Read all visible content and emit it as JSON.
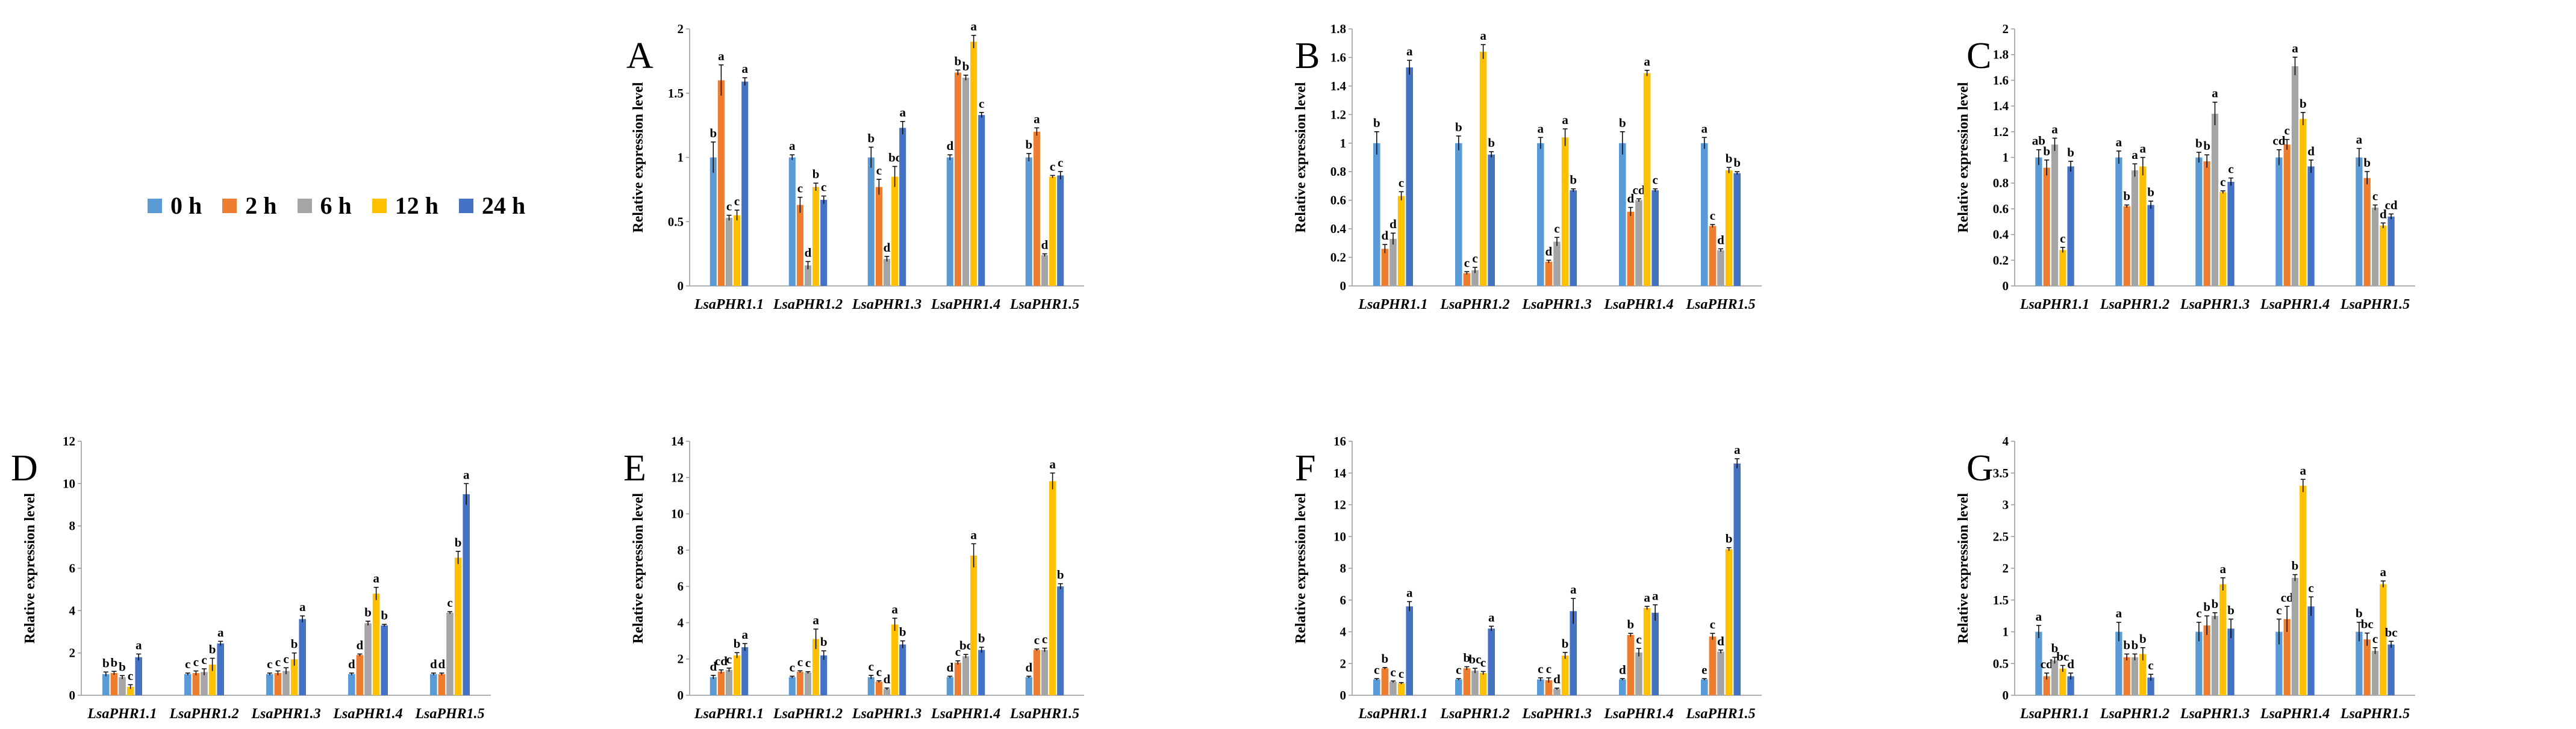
{
  "figure": {
    "legend": [
      {
        "label": "0 h",
        "color": "#5b9bd5"
      },
      {
        "label": "2 h",
        "color": "#ed7d31"
      },
      {
        "label": "6 h",
        "color": "#a5a5a5"
      },
      {
        "label": "12 h",
        "color": "#ffc000"
      },
      {
        "label": "24 h",
        "color": "#4472c4"
      }
    ]
  },
  "chart_data": [
    {
      "panel": "A",
      "type": "bar",
      "ylabel": "Relative expression level",
      "categories": [
        "LsaPHR1.1",
        "LsaPHR1.2",
        "LsaPHR1.3",
        "LsaPHR1.4",
        "LsaPHR1.5"
      ],
      "ylim": [
        0,
        2
      ],
      "ticks": [
        "0",
        "0.5",
        "1",
        "1.5",
        "2"
      ],
      "series": [
        {
          "name": "0 h",
          "values": [
            1.0,
            1.0,
            1.0,
            1.0,
            1.0
          ],
          "errors": [
            0.12,
            0.02,
            0.08,
            0.02,
            0.03
          ],
          "letters": [
            "b",
            "a",
            "b",
            "d",
            "b"
          ]
        },
        {
          "name": "2 h",
          "values": [
            1.6,
            0.63,
            0.77,
            1.66,
            1.2
          ],
          "errors": [
            0.12,
            0.06,
            0.06,
            0.02,
            0.03
          ],
          "letters": [
            "a",
            "c",
            "c",
            "b",
            "a"
          ]
        },
        {
          "name": "6 h",
          "values": [
            0.53,
            0.16,
            0.21,
            1.62,
            0.24
          ],
          "errors": [
            0.02,
            0.03,
            0.02,
            0.02,
            0.01
          ],
          "letters": [
            "c",
            "d",
            "d",
            "b",
            "d"
          ]
        },
        {
          "name": "12 h",
          "values": [
            0.55,
            0.77,
            0.85,
            1.9,
            0.85
          ],
          "errors": [
            0.04,
            0.03,
            0.08,
            0.05,
            0.01
          ],
          "letters": [
            "c",
            "b",
            "bc",
            "a",
            "c"
          ]
        },
        {
          "name": "24 h",
          "values": [
            1.59,
            0.67,
            1.23,
            1.33,
            0.86
          ],
          "errors": [
            0.03,
            0.03,
            0.05,
            0.02,
            0.03
          ],
          "letters": [
            "a",
            "c",
            "a",
            "c",
            "c"
          ]
        }
      ]
    },
    {
      "panel": "B",
      "type": "bar",
      "ylabel": "Relative expression level",
      "categories": [
        "LsaPHR1.1",
        "LsaPHR1.2",
        "LsaPHR1.3",
        "LsaPHR1.4",
        "LsaPHR1.5"
      ],
      "ylim": [
        0,
        1.8
      ],
      "ticks": [
        "0",
        "0.2",
        "0.4",
        "0.6",
        "0.8",
        "1",
        "1.2",
        "1.4",
        "1.6",
        "1.8"
      ],
      "series": [
        {
          "name": "0 h",
          "values": [
            1.0,
            1.0,
            1.0,
            1.0,
            1.0
          ],
          "errors": [
            0.08,
            0.05,
            0.04,
            0.08,
            0.04
          ],
          "letters": [
            "b",
            "b",
            "a",
            "b",
            "a"
          ]
        },
        {
          "name": "2 h",
          "values": [
            0.26,
            0.09,
            0.17,
            0.52,
            0.42
          ],
          "errors": [
            0.03,
            0.01,
            0.01,
            0.03,
            0.01
          ],
          "letters": [
            "d",
            "c",
            "d",
            "d",
            "c"
          ]
        },
        {
          "name": "6 h",
          "values": [
            0.33,
            0.11,
            0.31,
            0.6,
            0.25
          ],
          "errors": [
            0.04,
            0.02,
            0.03,
            0.01,
            0.01
          ],
          "letters": [
            "d",
            "c",
            "c",
            "cd",
            "d"
          ]
        },
        {
          "name": "12 h",
          "values": [
            0.63,
            1.64,
            1.04,
            1.49,
            0.81
          ],
          "errors": [
            0.03,
            0.05,
            0.06,
            0.02,
            0.02
          ],
          "letters": [
            "c",
            "a",
            "a",
            "a",
            "b"
          ]
        },
        {
          "name": "24 h",
          "values": [
            1.53,
            0.92,
            0.67,
            0.67,
            0.79
          ],
          "errors": [
            0.05,
            0.02,
            0.01,
            0.01,
            0.01
          ],
          "letters": [
            "a",
            "b",
            "b",
            "c",
            "b"
          ]
        }
      ]
    },
    {
      "panel": "C",
      "type": "bar",
      "ylabel": "Relative expression level",
      "categories": [
        "LsaPHR1.1",
        "LsaPHR1.2",
        "LsaPHR1.3",
        "LsaPHR1.4",
        "LsaPHR1.5"
      ],
      "ylim": [
        0,
        2
      ],
      "ticks": [
        "0",
        "0.2",
        "0.4",
        "0.6",
        "0.8",
        "1",
        "1.2",
        "1.4",
        "1.6",
        "1.8",
        "2"
      ],
      "series": [
        {
          "name": "0 h",
          "values": [
            1.0,
            1.0,
            1.0,
            1.0,
            1.0
          ],
          "errors": [
            0.06,
            0.05,
            0.04,
            0.06,
            0.07
          ],
          "letters": [
            "ab",
            "a",
            "b",
            "cd",
            "a"
          ]
        },
        {
          "name": "2 h",
          "values": [
            0.92,
            0.62,
            0.97,
            1.1,
            0.84
          ],
          "errors": [
            0.06,
            0.01,
            0.05,
            0.04,
            0.05
          ],
          "letters": [
            "b",
            "b",
            "b",
            "c",
            "b"
          ]
        },
        {
          "name": "6 h",
          "values": [
            1.1,
            0.9,
            1.34,
            1.71,
            0.61
          ],
          "errors": [
            0.05,
            0.05,
            0.09,
            0.07,
            0.02
          ],
          "letters": [
            "a",
            "a",
            "a",
            "a",
            "c"
          ]
        },
        {
          "name": "12 h",
          "values": [
            0.28,
            0.93,
            0.73,
            1.3,
            0.47
          ],
          "errors": [
            0.02,
            0.07,
            0.01,
            0.05,
            0.02
          ],
          "letters": [
            "c",
            "a",
            "c",
            "b",
            "d"
          ]
        },
        {
          "name": "24 h",
          "values": [
            0.93,
            0.63,
            0.81,
            0.93,
            0.54
          ],
          "errors": [
            0.04,
            0.03,
            0.03,
            0.05,
            0.02
          ],
          "letters": [
            "b",
            "b",
            "c",
            "d",
            "cd"
          ]
        }
      ]
    },
    {
      "panel": "D",
      "type": "bar",
      "ylabel": "Relative expression level",
      "categories": [
        "LsaPHR1.1",
        "LsaPHR1.2",
        "LsaPHR1.3",
        "LsaPHR1.4",
        "LsaPHR1.5"
      ],
      "ylim": [
        0,
        12
      ],
      "ticks": [
        "0",
        "2",
        "4",
        "6",
        "8",
        "10",
        "12"
      ],
      "series": [
        {
          "name": "0 h",
          "values": [
            1.0,
            1.0,
            1.0,
            1.0,
            1.0
          ],
          "errors": [
            0.1,
            0.05,
            0.05,
            0.05,
            0.05
          ],
          "letters": [
            "b",
            "c",
            "c",
            "d",
            "d"
          ]
        },
        {
          "name": "2 h",
          "values": [
            1.05,
            1.05,
            1.05,
            1.9,
            1.0
          ],
          "errors": [
            0.08,
            0.1,
            0.1,
            0.05,
            0.05
          ],
          "letters": [
            "b",
            "c",
            "c",
            "d",
            "d"
          ]
        },
        {
          "name": "6 h",
          "values": [
            0.85,
            1.1,
            1.15,
            3.4,
            3.9
          ],
          "errors": [
            0.08,
            0.15,
            0.15,
            0.1,
            0.05
          ],
          "letters": [
            "b",
            "c",
            "c",
            "b",
            "c"
          ]
        },
        {
          "name": "12 h",
          "values": [
            0.4,
            1.45,
            1.7,
            4.8,
            6.5
          ],
          "errors": [
            0.1,
            0.3,
            0.3,
            0.3,
            0.3
          ],
          "letters": [
            "c",
            "b",
            "b",
            "a",
            "b"
          ]
        },
        {
          "name": "24 h",
          "values": [
            1.8,
            2.45,
            3.6,
            3.3,
            9.5
          ],
          "errors": [
            0.15,
            0.1,
            0.15,
            0.05,
            0.5
          ],
          "letters": [
            "a",
            "a",
            "a",
            "b",
            "a"
          ]
        }
      ]
    },
    {
      "panel": "E",
      "type": "bar",
      "ylabel": "Relative expression level",
      "categories": [
        "LsaPHR1.1",
        "LsaPHR1.2",
        "LsaPHR1.3",
        "LsaPHR1.4",
        "LsaPHR1.5"
      ],
      "ylim": [
        0,
        14
      ],
      "ticks": [
        "0",
        "2",
        "4",
        "6",
        "8",
        "10",
        "12",
        "14"
      ],
      "series": [
        {
          "name": "0 h",
          "values": [
            1.0,
            1.0,
            1.0,
            1.0,
            1.0
          ],
          "errors": [
            0.1,
            0.05,
            0.1,
            0.05,
            0.05
          ],
          "letters": [
            "d",
            "c",
            "c",
            "d",
            "d"
          ]
        },
        {
          "name": "2 h",
          "values": [
            1.3,
            1.3,
            0.75,
            1.8,
            2.5
          ],
          "errors": [
            0.1,
            0.05,
            0.05,
            0.1,
            0.05
          ],
          "letters": [
            "cd",
            "c",
            "c",
            "c",
            "c"
          ]
        },
        {
          "name": "6 h",
          "values": [
            1.4,
            1.25,
            0.35,
            2.15,
            2.5
          ],
          "errors": [
            0.1,
            0.05,
            0.05,
            0.1,
            0.1
          ],
          "letters": [
            "c",
            "c",
            "d",
            "bc",
            "c"
          ]
        },
        {
          "name": "12 h",
          "values": [
            2.2,
            3.1,
            3.9,
            7.7,
            11.8
          ],
          "errors": [
            0.15,
            0.55,
            0.35,
            0.65,
            0.45
          ],
          "letters": [
            "b",
            "a",
            "a",
            "a",
            "a"
          ]
        },
        {
          "name": "24 h",
          "values": [
            2.65,
            2.2,
            2.8,
            2.5,
            6.0
          ],
          "errors": [
            0.2,
            0.25,
            0.2,
            0.15,
            0.15
          ],
          "letters": [
            "a",
            "b",
            "b",
            "b",
            "b"
          ]
        }
      ]
    },
    {
      "panel": "F",
      "type": "bar",
      "ylabel": "Relative expression level",
      "categories": [
        "LsaPHR1.1",
        "LsaPHR1.2",
        "LsaPHR1.3",
        "LsaPHR1.4",
        "LsaPHR1.5"
      ],
      "ylim": [
        0,
        16
      ],
      "ticks": [
        "0",
        "2",
        "4",
        "6",
        "8",
        "10",
        "12",
        "14",
        "16"
      ],
      "series": [
        {
          "name": "0 h",
          "values": [
            1.0,
            1.0,
            1.0,
            1.0,
            1.0
          ],
          "errors": [
            0.05,
            0.05,
            0.1,
            0.05,
            0.05
          ],
          "letters": [
            "c",
            "c",
            "c",
            "d",
            "e"
          ]
        },
        {
          "name": "2 h",
          "values": [
            1.7,
            1.7,
            0.95,
            3.8,
            3.7
          ],
          "errors": [
            0.05,
            0.1,
            0.15,
            0.1,
            0.2
          ],
          "letters": [
            "b",
            "b",
            "c",
            "b",
            "c"
          ]
        },
        {
          "name": "6 h",
          "values": [
            0.85,
            1.55,
            0.4,
            2.7,
            2.75
          ],
          "errors": [
            0.05,
            0.15,
            0.05,
            0.25,
            0.1
          ],
          "letters": [
            "c",
            "bc",
            "d",
            "c",
            "d"
          ]
        },
        {
          "name": "12 h",
          "values": [
            0.75,
            1.4,
            2.5,
            5.5,
            9.2
          ],
          "errors": [
            0.05,
            0.1,
            0.2,
            0.1,
            0.1
          ],
          "letters": [
            "c",
            "c",
            "b",
            "a",
            "b"
          ]
        },
        {
          "name": "24 h",
          "values": [
            5.6,
            4.2,
            5.3,
            5.2,
            14.6
          ],
          "errors": [
            0.3,
            0.15,
            0.8,
            0.5,
            0.3
          ],
          "letters": [
            "a",
            "a",
            "a",
            "a",
            "a"
          ]
        }
      ]
    },
    {
      "panel": "G",
      "type": "bar",
      "ylabel": "Relative expression level",
      "categories": [
        "LsaPHR1.1",
        "LsaPHR1.2",
        "LsaPHR1.3",
        "LsaPHR1.4",
        "LsaPHR1.5"
      ],
      "ylim": [
        0,
        4
      ],
      "ticks": [
        "0",
        "0.5",
        "1",
        "1.5",
        "2",
        "2.5",
        "3",
        "3.5",
        "4"
      ],
      "series": [
        {
          "name": "0 h",
          "values": [
            1.0,
            1.0,
            1.0,
            1.0,
            1.0
          ],
          "errors": [
            0.1,
            0.15,
            0.15,
            0.2,
            0.15
          ],
          "letters": [
            "a",
            "a",
            "c",
            "c",
            "b"
          ]
        },
        {
          "name": "2 h",
          "values": [
            0.3,
            0.6,
            1.1,
            1.2,
            0.88
          ],
          "errors": [
            0.05,
            0.05,
            0.15,
            0.2,
            0.1
          ],
          "letters": [
            "cd",
            "b",
            "b",
            "cd",
            "bc"
          ]
        },
        {
          "name": "6 h",
          "values": [
            0.55,
            0.6,
            1.25,
            1.85,
            0.7
          ],
          "errors": [
            0.05,
            0.05,
            0.05,
            0.05,
            0.05
          ],
          "letters": [
            "b",
            "b",
            "b",
            "b",
            "c"
          ]
        },
        {
          "name": "12 h",
          "values": [
            0.42,
            0.65,
            1.75,
            3.3,
            1.75
          ],
          "errors": [
            0.05,
            0.1,
            0.1,
            0.1,
            0.05
          ],
          "letters": [
            "bc",
            "b",
            "a",
            "a",
            "a"
          ]
        },
        {
          "name": "24 h",
          "values": [
            0.3,
            0.28,
            1.05,
            1.4,
            0.8
          ],
          "errors": [
            0.05,
            0.05,
            0.15,
            0.15,
            0.05
          ],
          "letters": [
            "d",
            "c",
            "b",
            "c",
            "bc"
          ]
        }
      ]
    }
  ]
}
